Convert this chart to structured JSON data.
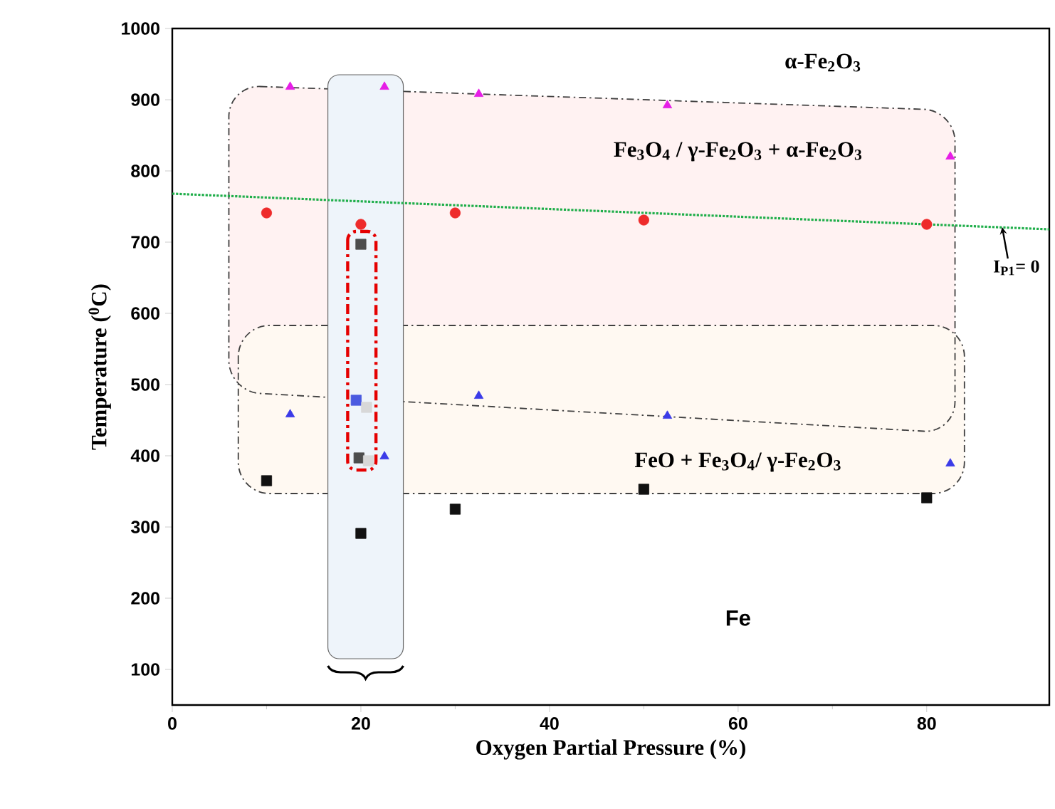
{
  "chart_data": {
    "type": "scatter",
    "xlabel": "Oxygen Partial Pressure (%)",
    "ylabel": "Temperature ($^{0}$C)",
    "xlim": [
      0,
      93
    ],
    "ylim": [
      50,
      1000
    ],
    "xticks": [
      0,
      20,
      40,
      60,
      80
    ],
    "yticks": [
      100,
      200,
      300,
      400,
      500,
      600,
      700,
      800,
      900,
      1000
    ],
    "grid": false,
    "series": [
      {
        "type": "line",
        "color": "#1fae4a",
        "line_style": "dotted",
        "marker": "none",
        "x": [
          0,
          93
        ],
        "values": [
          768,
          718
        ]
      },
      {
        "color": "#e61ee6",
        "marker": "triangle",
        "x": [
          12.5,
          22.5,
          32.5,
          52.5,
          82.5
        ],
        "values": [
          918,
          918,
          908,
          892,
          820
        ]
      },
      {
        "color": "#ee2b2b",
        "marker": "circle",
        "x": [
          10,
          20,
          30,
          50,
          80
        ],
        "values": [
          741,
          725,
          741,
          731,
          725
        ]
      },
      {
        "color": "#3b3be8",
        "marker": "triangle",
        "x": [
          12.5,
          22.5,
          32.5,
          52.5,
          82.5
        ],
        "values": [
          458,
          399,
          484,
          456,
          389
        ]
      },
      {
        "color": "#4a5ae0",
        "marker": "square",
        "x": [
          19.5
        ],
        "values": [
          478
        ]
      },
      {
        "color": "#111111",
        "marker": "square",
        "x": [
          10,
          20,
          30,
          50,
          80
        ],
        "values": [
          365,
          291,
          325,
          353,
          341
        ]
      },
      {
        "color": "#4d4d4d",
        "marker": "square",
        "x": [
          19.8,
          20
        ],
        "values": [
          397,
          697
        ]
      },
      {
        "color": "#d8d8d8",
        "marker": "square",
        "x": [
          20.6,
          20.8
        ],
        "values": [
          468,
          393
        ]
      }
    ],
    "annotations": [
      "α-Fe$_{2}$O$_{3}$",
      "Fe$_{3}$O$_{4}$ / γ-Fe$_{2}$O$_{3}$ + α-Fe$_{2}$O$_{3}$",
      "FeO + Fe$_{3}$O$_{4}$/ γ-Fe$_{2}$O$_{3}$",
      "Fe",
      {
        "text": "I$_{P1}$= 0",
        "x": 88,
        "y": 721
      }
    ]
  }
}
